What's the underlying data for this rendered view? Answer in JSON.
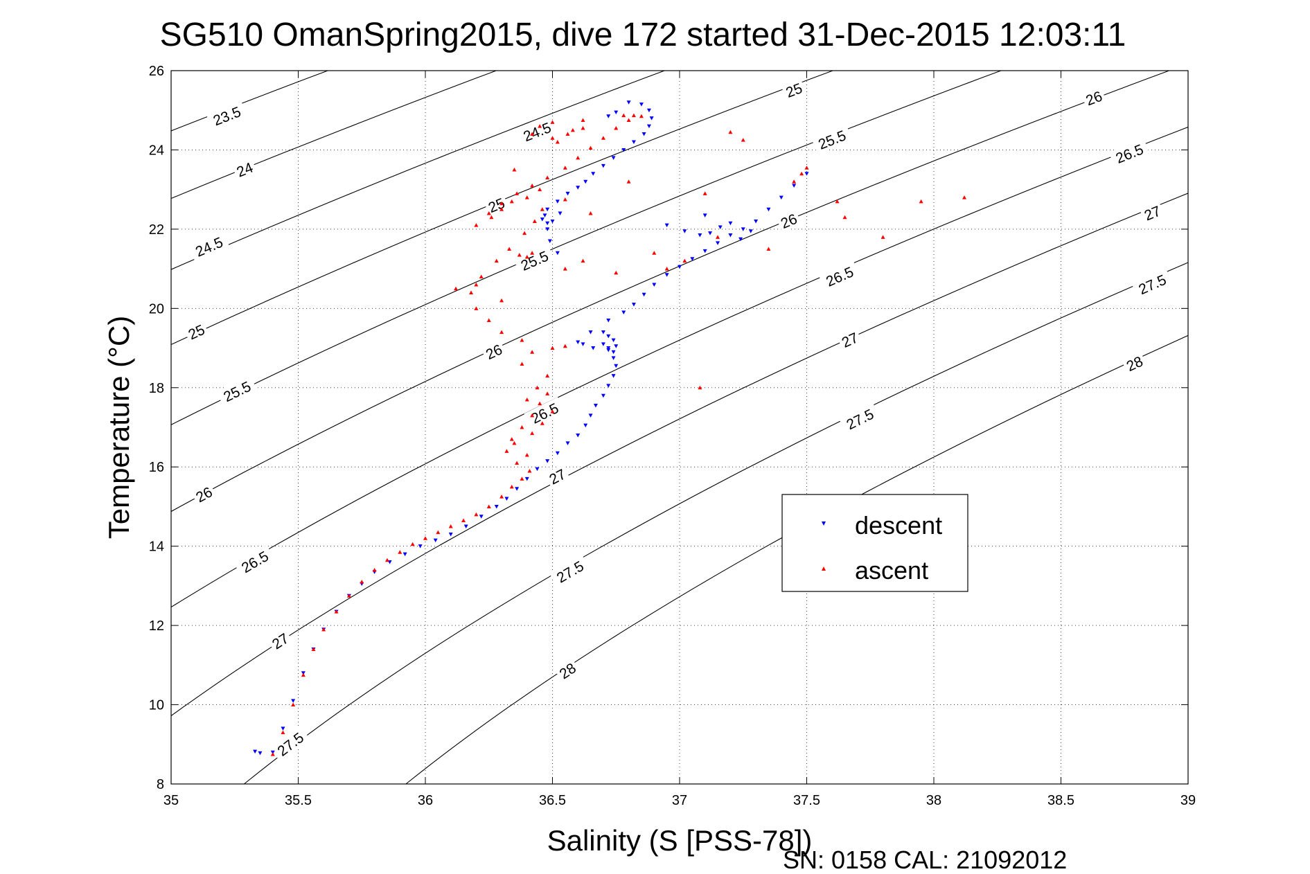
{
  "chart_data": {
    "type": "scatter",
    "title": "SG510 OmanSpring2015, dive 172 started 31-Dec-2015 12:03:11",
    "xlabel": "Salinity (S [PSS-78])",
    "ylabel": "Temperature (°C)",
    "xlim": [
      35,
      39
    ],
    "ylim": [
      8,
      26
    ],
    "xticks": [
      35,
      35.5,
      36,
      36.5,
      37,
      37.5,
      38,
      38.5,
      39
    ],
    "xtick_labels": [
      "35",
      "35.5",
      "36",
      "36.5",
      "37",
      "37.5",
      "38",
      "38.5",
      "39"
    ],
    "yticks": [
      8,
      10,
      12,
      14,
      16,
      18,
      20,
      22,
      24,
      26
    ],
    "ytick_labels": [
      "8",
      "10",
      "12",
      "14",
      "16",
      "18",
      "20",
      "22",
      "24",
      "26"
    ],
    "grid": true,
    "legend_position": "lower-right",
    "footer": "SN: 0158  CAL: 21092012",
    "density_contours": [
      {
        "level": "23.5",
        "label_points": [
          [
            35.22,
            24.85
          ]
        ]
      },
      {
        "level": "24",
        "label_points": [
          [
            35.29,
            23.5
          ]
        ]
      },
      {
        "level": "24.5",
        "label_points": [
          [
            35.15,
            21.55
          ],
          [
            36.44,
            24.45
          ]
        ]
      },
      {
        "level": "25",
        "label_points": [
          [
            35.1,
            19.4
          ],
          [
            36.28,
            22.6
          ],
          [
            37.45,
            25.5
          ]
        ]
      },
      {
        "level": "25.5",
        "label_points": [
          [
            35.26,
            17.9
          ],
          [
            36.43,
            21.2
          ],
          [
            37.6,
            24.25
          ]
        ]
      },
      {
        "level": "26",
        "label_points": [
          [
            35.13,
            15.3
          ],
          [
            36.27,
            18.9
          ],
          [
            37.43,
            22.2
          ],
          [
            38.63,
            25.3
          ]
        ]
      },
      {
        "level": "26.5",
        "label_points": [
          [
            35.33,
            13.6
          ],
          [
            36.47,
            17.35
          ],
          [
            37.63,
            20.8
          ],
          [
            38.77,
            23.9
          ]
        ]
      },
      {
        "level": "27",
        "label_points": [
          [
            35.43,
            11.6
          ],
          [
            36.52,
            15.75
          ],
          [
            37.67,
            19.2
          ],
          [
            38.86,
            22.4
          ]
        ]
      },
      {
        "level": "27.5",
        "label_points": [
          [
            35.47,
            9.0
          ],
          [
            36.57,
            13.35
          ],
          [
            37.71,
            17.2
          ],
          [
            38.86,
            20.6
          ]
        ]
      },
      {
        "level": "28",
        "label_points": [
          [
            36.56,
            10.85
          ],
          [
            38.79,
            18.6
          ]
        ]
      }
    ],
    "series": [
      {
        "name": "descent",
        "color": "#0000ff",
        "marker": "triangle-down",
        "x": [
          35.33,
          35.35,
          35.4,
          35.44,
          35.48,
          35.52,
          35.56,
          35.6,
          35.65,
          35.7,
          35.75,
          35.8,
          35.86,
          35.92,
          35.98,
          36.04,
          36.1,
          36.16,
          36.22,
          36.28,
          36.32,
          36.36,
          36.4,
          36.44,
          36.48,
          36.52,
          36.56,
          36.6,
          36.63,
          36.65,
          36.67,
          36.7,
          36.72,
          36.74,
          36.75,
          36.74,
          36.72,
          36.7,
          36.72,
          36.74,
          36.75,
          36.74,
          36.72,
          36.7,
          36.66,
          36.62,
          36.6,
          36.65,
          36.72,
          36.78,
          36.82,
          36.86,
          36.9,
          36.95,
          37.0,
          37.05,
          37.1,
          37.15,
          37.2,
          37.25,
          37.3,
          37.35,
          37.4,
          37.45,
          37.5,
          36.52,
          36.49,
          36.48,
          36.5,
          36.53,
          36.48,
          36.47,
          36.46,
          36.48,
          36.52,
          36.56,
          36.6,
          36.63,
          36.66,
          36.7,
          36.74,
          36.78,
          36.82,
          36.86,
          36.88,
          36.89,
          36.88,
          36.85,
          36.8,
          36.75,
          36.72,
          36.95,
          37.02,
          37.08,
          37.12,
          37.16,
          37.2,
          37.24,
          37.28,
          37.1
        ],
        "y": [
          8.82,
          8.78,
          8.8,
          9.4,
          10.1,
          10.8,
          11.4,
          11.9,
          12.35,
          12.75,
          13.05,
          13.35,
          13.6,
          13.8,
          14.0,
          14.15,
          14.3,
          14.5,
          14.75,
          15.0,
          15.2,
          15.45,
          15.7,
          15.95,
          16.15,
          16.35,
          16.6,
          16.8,
          17.05,
          17.3,
          17.55,
          17.8,
          18.05,
          18.3,
          18.55,
          18.75,
          18.95,
          19.1,
          19.3,
          19.2,
          19.05,
          18.9,
          19.0,
          19.4,
          19.0,
          19.1,
          19.15,
          19.4,
          19.7,
          19.9,
          20.1,
          20.35,
          20.6,
          20.85,
          21.05,
          21.25,
          21.45,
          21.65,
          21.85,
          22.0,
          22.2,
          22.5,
          22.8,
          23.1,
          23.4,
          21.4,
          21.7,
          22.0,
          22.2,
          22.4,
          22.15,
          22.35,
          22.25,
          22.5,
          22.7,
          22.9,
          23.05,
          23.2,
          23.4,
          23.6,
          23.8,
          24.0,
          24.2,
          24.4,
          24.6,
          24.8,
          25.0,
          25.15,
          25.2,
          24.95,
          24.85,
          22.1,
          21.95,
          21.85,
          21.9,
          22.05,
          22.15,
          21.75,
          21.95,
          22.35
        ]
      },
      {
        "name": "ascent",
        "color": "#ff0000",
        "marker": "triangle-up",
        "x": [
          35.4,
          35.44,
          35.48,
          35.52,
          35.56,
          35.6,
          35.65,
          35.7,
          35.75,
          35.8,
          35.85,
          35.9,
          35.95,
          36.0,
          36.05,
          36.1,
          36.15,
          36.2,
          36.25,
          36.3,
          36.34,
          36.38,
          36.41,
          36.36,
          36.32,
          36.34,
          36.38,
          36.42,
          36.45,
          36.48,
          36.4,
          36.35,
          36.42,
          36.46,
          36.5,
          36.4,
          36.44,
          36.48,
          36.38,
          36.42,
          36.5,
          36.55,
          36.38,
          36.3,
          36.25,
          36.2,
          36.18,
          36.22,
          36.28,
          36.33,
          36.37,
          36.4,
          36.42,
          36.39,
          36.43,
          36.46,
          36.4,
          36.34,
          36.3,
          36.26,
          36.2,
          36.25,
          36.3,
          36.36,
          36.42,
          36.48,
          36.55,
          36.6,
          36.65,
          36.7,
          36.75,
          36.8,
          36.85,
          36.82,
          36.78,
          36.5,
          36.56,
          36.62,
          36.52,
          36.42,
          36.45,
          36.5,
          36.58,
          36.62,
          36.12,
          36.35,
          36.45,
          36.55,
          36.65,
          36.8,
          36.95,
          37.1,
          37.2,
          37.25,
          37.45,
          37.5,
          37.62,
          37.65,
          37.8,
          37.95,
          38.12,
          37.08,
          36.3,
          36.2,
          36.55,
          36.62,
          36.75,
          36.9,
          37.02,
          37.15,
          37.35,
          37.48
        ],
        "y": [
          8.75,
          9.3,
          10.0,
          10.75,
          11.4,
          11.9,
          12.35,
          12.75,
          13.1,
          13.4,
          13.65,
          13.85,
          14.05,
          14.2,
          14.35,
          14.5,
          14.65,
          14.8,
          15.0,
          15.25,
          15.5,
          15.7,
          15.9,
          16.1,
          16.4,
          16.7,
          17.0,
          17.3,
          17.6,
          17.85,
          16.3,
          16.6,
          16.85,
          17.1,
          17.4,
          17.7,
          18.0,
          18.3,
          18.6,
          18.9,
          19.0,
          19.05,
          19.2,
          19.4,
          19.7,
          20.0,
          20.4,
          20.8,
          21.2,
          21.5,
          21.35,
          21.3,
          21.4,
          21.9,
          22.2,
          22.5,
          22.8,
          22.7,
          22.5,
          22.3,
          22.1,
          22.4,
          22.65,
          22.9,
          23.1,
          23.3,
          23.55,
          23.8,
          24.05,
          24.3,
          24.55,
          24.75,
          24.85,
          24.87,
          24.87,
          24.3,
          24.4,
          24.55,
          24.2,
          24.4,
          24.6,
          24.7,
          24.5,
          24.75,
          20.5,
          23.5,
          23.0,
          22.75,
          22.4,
          23.2,
          21.0,
          22.9,
          24.45,
          24.25,
          23.2,
          23.55,
          22.7,
          22.3,
          21.8,
          22.7,
          22.8,
          18.0,
          20.2,
          20.6,
          21.0,
          21.2,
          20.9,
          21.4,
          21.2,
          21.8,
          21.5,
          23.4
        ]
      }
    ]
  }
}
